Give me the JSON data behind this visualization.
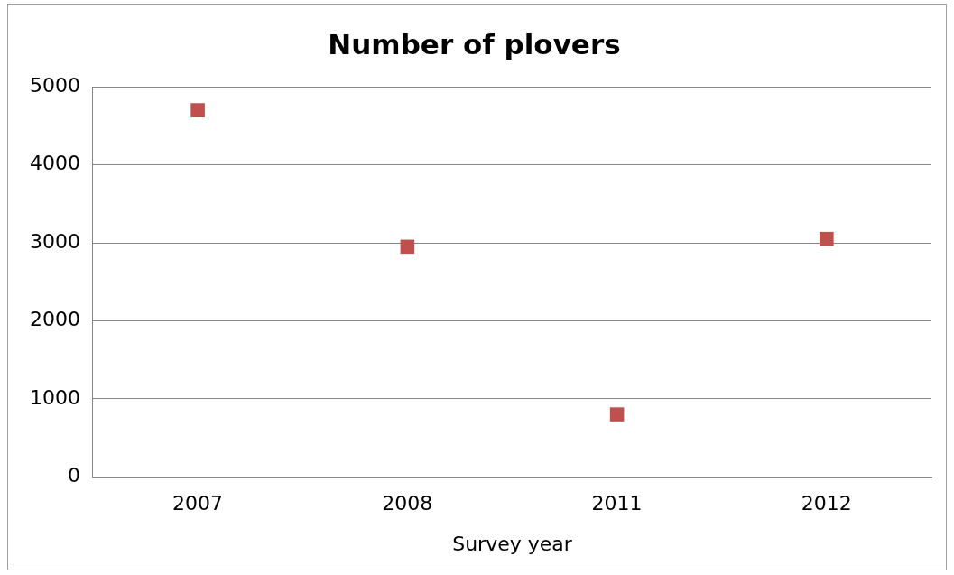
{
  "chart_data": {
    "type": "scatter",
    "title": "Number of plovers",
    "xlabel": "Survey year",
    "categories": [
      "2007",
      "2008",
      "2011",
      "2012"
    ],
    "series": [
      {
        "color": "#c0504d",
        "values": [
          4700,
          2950,
          800,
          3050
        ]
      }
    ],
    "ylim": [
      0,
      5000
    ],
    "yticks": [
      0,
      1000,
      2000,
      3000,
      4000,
      5000
    ],
    "grid": "y",
    "legend": false,
    "marker": "square"
  }
}
